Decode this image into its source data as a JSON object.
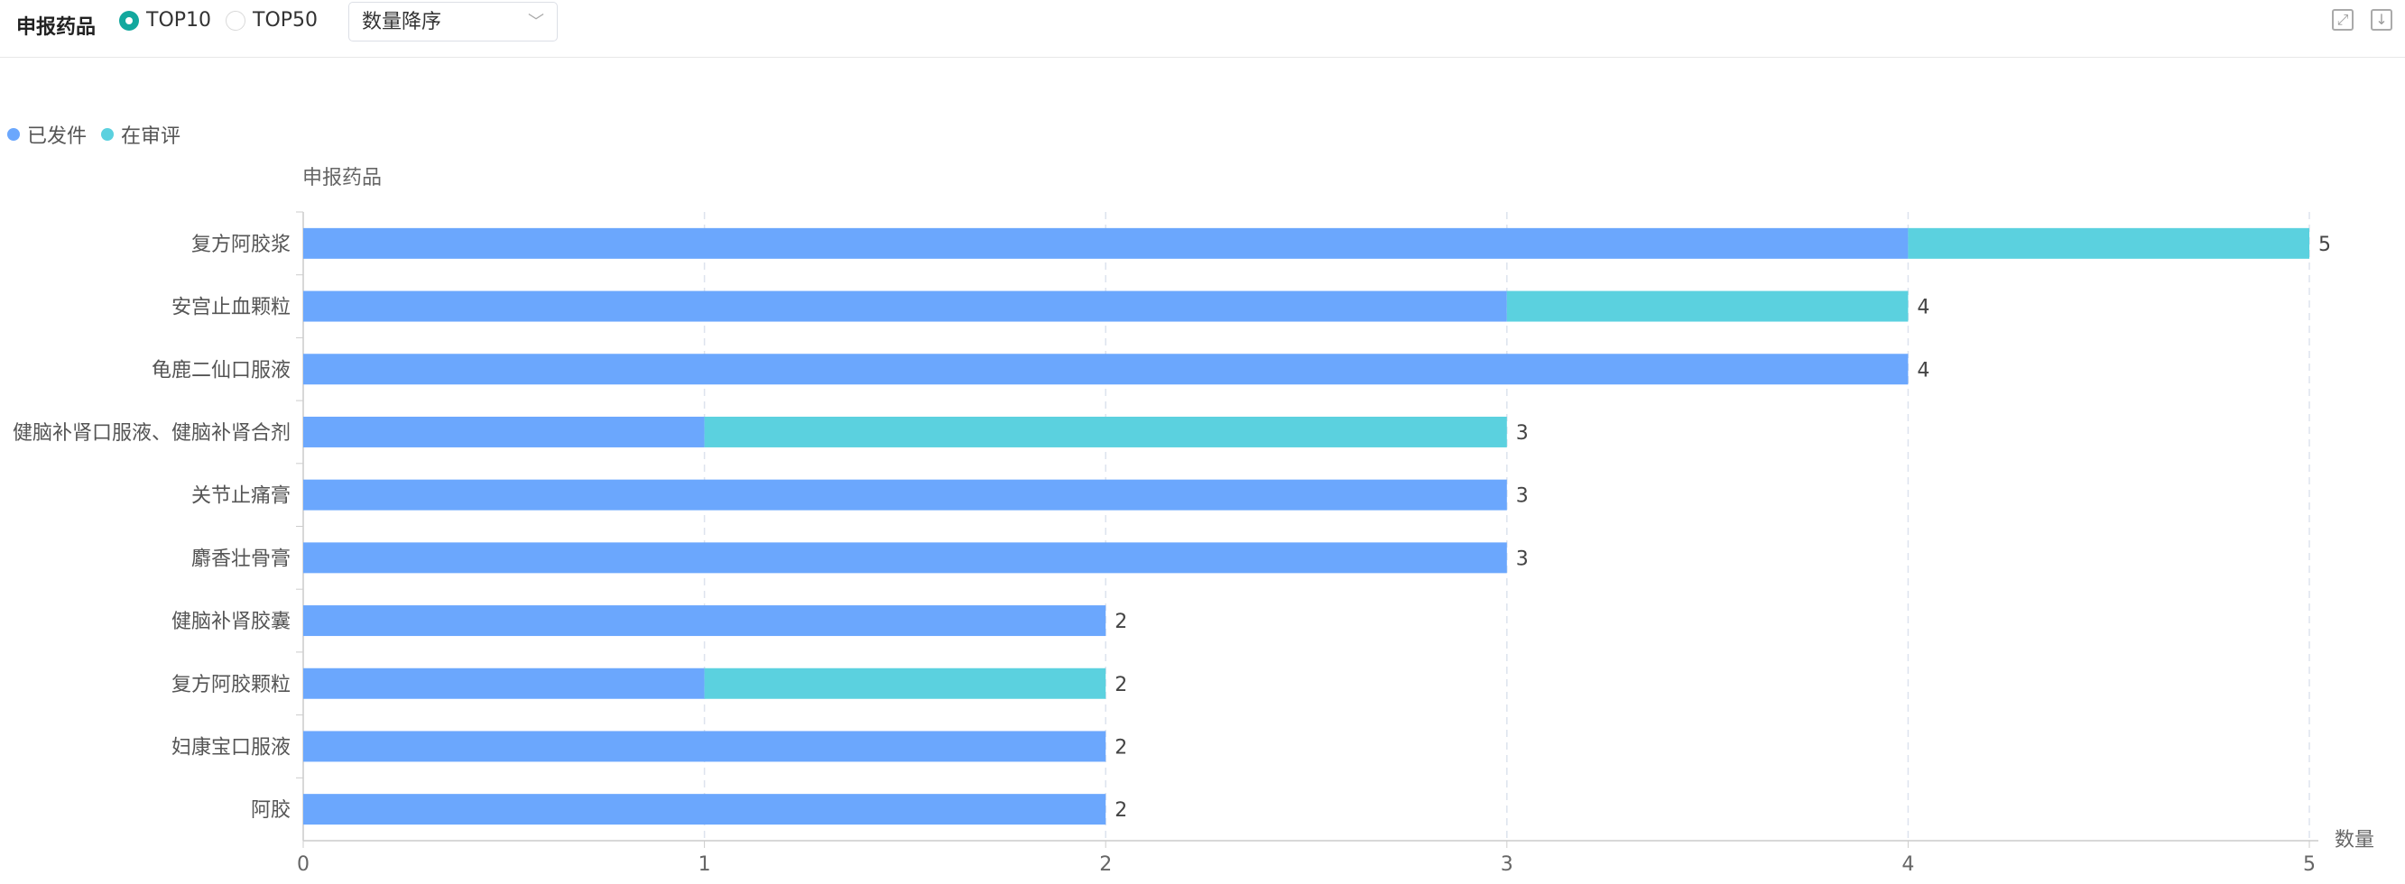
{
  "header": {
    "title": "申报药品",
    "radios": [
      {
        "label": "TOP10",
        "checked": true
      },
      {
        "label": "TOP50",
        "checked": false
      }
    ],
    "sort_select": "数量降序",
    "icons": [
      "expand-icon",
      "download-icon"
    ]
  },
  "colors": {
    "issued": "#6ba7fd",
    "review": "#5bd1df",
    "accent": "#13a89e"
  },
  "chart_data": {
    "type": "bar",
    "orientation": "horizontal",
    "stacked": true,
    "ylabel": "申报药品",
    "xlabel": "数量",
    "xlim": [
      0,
      5
    ],
    "xticks": [
      "0",
      "1",
      "2",
      "3",
      "4",
      "5"
    ],
    "legend_position": "top-left",
    "categories": [
      "复方阿胶浆",
      "安宫止血颗粒",
      "龟鹿二仙口服液",
      "健脑补肾口服液、健脑补肾合剂",
      "关节止痛膏",
      "麝香壮骨膏",
      "健脑补肾胶囊",
      "复方阿胶颗粒",
      "妇康宝口服液",
      "阿胶"
    ],
    "series": [
      {
        "name": "已发件",
        "values": [
          4,
          3,
          4,
          1,
          3,
          3,
          2,
          1,
          2,
          2
        ]
      },
      {
        "name": "在审评",
        "values": [
          1,
          1,
          0,
          2,
          0,
          0,
          0,
          1,
          0,
          0
        ]
      }
    ],
    "totals": [
      "5",
      "4",
      "4",
      "3",
      "3",
      "3",
      "2",
      "2",
      "2",
      "2"
    ]
  }
}
